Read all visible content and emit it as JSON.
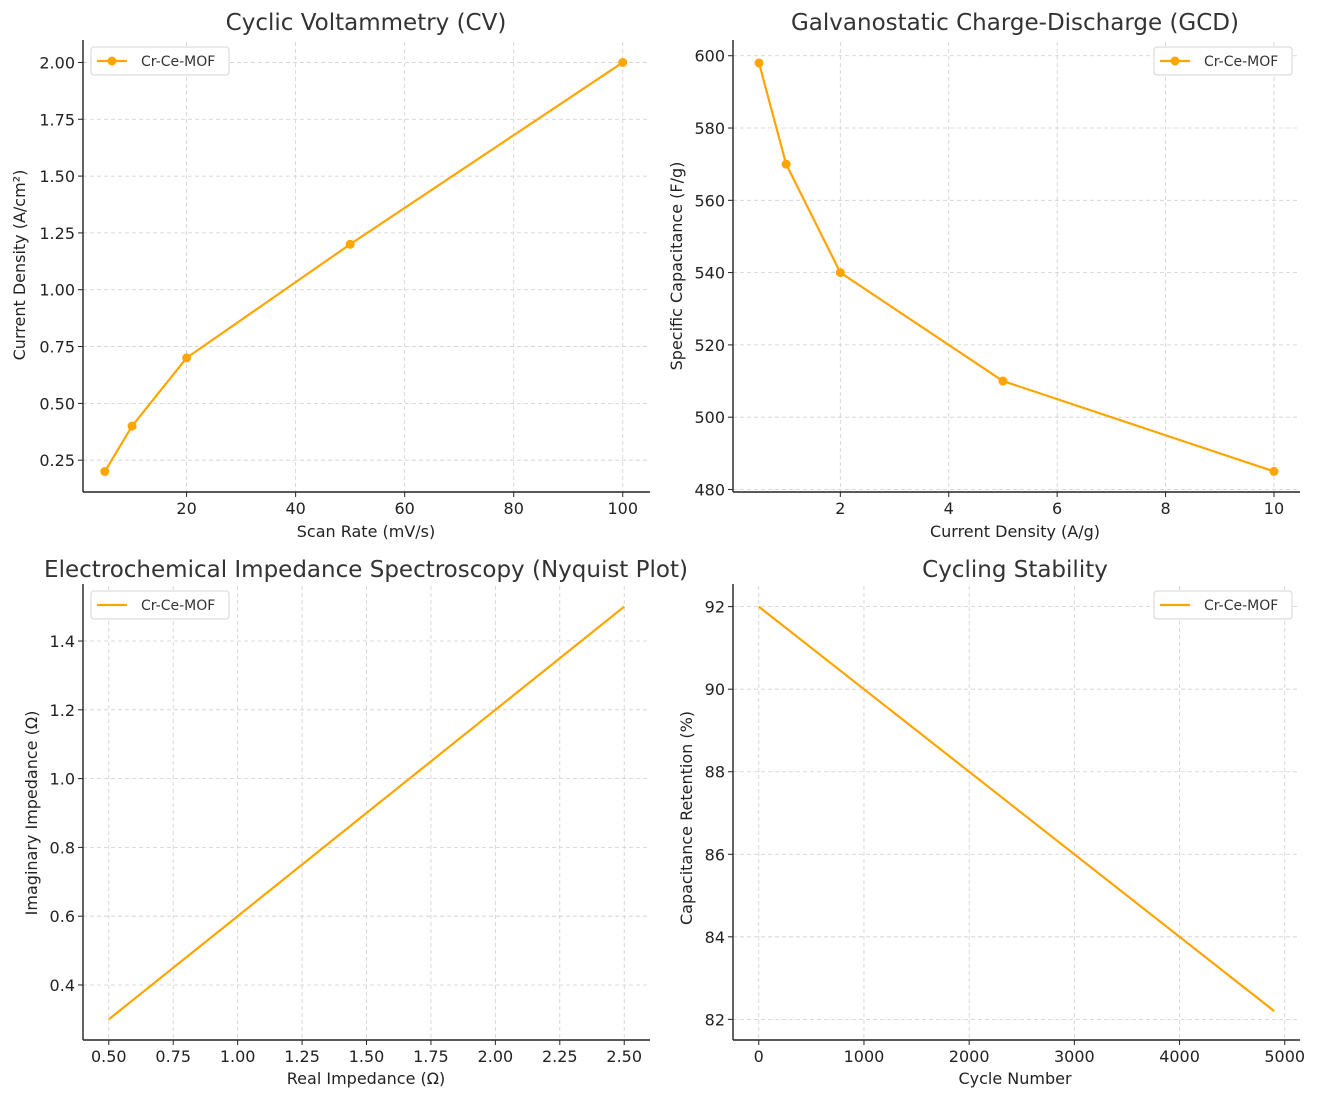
{
  "chart_data": [
    {
      "type": "line",
      "title": "Cyclic Voltammetry (CV)",
      "xlabel": "Scan Rate (mV/s)",
      "ylabel": "Current Density (A/cm²)",
      "xlim": [
        1.0,
        105.0
      ],
      "ylim": [
        0.11,
        2.09
      ],
      "xticks": [
        20,
        40,
        60,
        80,
        100
      ],
      "xtick_labels": [
        "20",
        "40",
        "60",
        "80",
        "100"
      ],
      "yticks": [
        0.25,
        0.5,
        0.75,
        1.0,
        1.25,
        1.5,
        1.75,
        2.0
      ],
      "ytick_labels": [
        "0.25",
        "0.50",
        "0.75",
        "1.00",
        "1.25",
        "1.50",
        "1.75",
        "2.00"
      ],
      "grid": true,
      "legend": "upper-left",
      "markers": true,
      "series": [
        {
          "name": "Cr-Ce-MOF",
          "x": [
            5,
            10,
            20,
            50,
            100
          ],
          "y": [
            0.2,
            0.4,
            0.7,
            1.2,
            2.0
          ]
        }
      ]
    },
    {
      "type": "line",
      "title": "Galvanostatic Charge-Discharge (GCD)",
      "xlabel": "Current Density (A/g)",
      "ylabel": "Specific Capacitance (F/g)",
      "xlim": [
        0.02,
        10.48
      ],
      "ylim": [
        479.3,
        603.8
      ],
      "xticks": [
        2,
        4,
        6,
        8,
        10
      ],
      "xtick_labels": [
        "2",
        "4",
        "6",
        "8",
        "10"
      ],
      "yticks": [
        480,
        500,
        520,
        540,
        560,
        580,
        600
      ],
      "ytick_labels": [
        "480",
        "500",
        "520",
        "540",
        "560",
        "580",
        "600"
      ],
      "grid": true,
      "legend": "upper-right",
      "markers": true,
      "series": [
        {
          "name": "Cr-Ce-MOF",
          "x": [
            0.5,
            1,
            2,
            5,
            10
          ],
          "y": [
            598,
            570,
            540,
            510,
            485
          ]
        }
      ]
    },
    {
      "type": "line",
      "title": "Electrochemical Impedance Spectroscopy (Nyquist Plot)",
      "xlabel": "Real Impedance (Ω)",
      "ylabel": "Imaginary Impedance (Ω)",
      "xlim": [
        0.4,
        2.6
      ],
      "ylim": [
        0.24,
        1.56
      ],
      "xticks": [
        0.5,
        0.75,
        1.0,
        1.25,
        1.5,
        1.75,
        2.0,
        2.25,
        2.5
      ],
      "xtick_labels": [
        "0.50",
        "0.75",
        "1.00",
        "1.25",
        "1.50",
        "1.75",
        "2.00",
        "2.25",
        "2.50"
      ],
      "yticks": [
        0.4,
        0.6,
        0.8,
        1.0,
        1.2,
        1.4
      ],
      "ytick_labels": [
        "0.4",
        "0.6",
        "0.8",
        "1.0",
        "1.2",
        "1.4"
      ],
      "grid": true,
      "legend": "upper-left",
      "markers": false,
      "series": [
        {
          "name": "Cr-Ce-MOF",
          "x": [
            0.5,
            2.5
          ],
          "y": [
            0.3,
            1.5
          ]
        }
      ]
    },
    {
      "type": "line",
      "title": "Cycling Stability",
      "xlabel": "Cycle Number",
      "ylabel": "Capacitance Retention (%)",
      "xlim": [
        -245,
        5145
      ],
      "ylim": [
        81.5,
        92.5
      ],
      "xticks": [
        0,
        1000,
        2000,
        3000,
        4000,
        5000
      ],
      "xtick_labels": [
        "0",
        "1000",
        "2000",
        "3000",
        "4000",
        "5000"
      ],
      "yticks": [
        82,
        84,
        86,
        88,
        90,
        92
      ],
      "ytick_labels": [
        "82",
        "84",
        "86",
        "88",
        "90",
        "92"
      ],
      "grid": true,
      "legend": "upper-right",
      "markers": false,
      "series": [
        {
          "name": "Cr-Ce-MOF",
          "x": [
            0,
            4900
          ],
          "y": [
            92,
            82.2
          ]
        }
      ]
    }
  ],
  "colors": {
    "series": "#FFA500"
  }
}
